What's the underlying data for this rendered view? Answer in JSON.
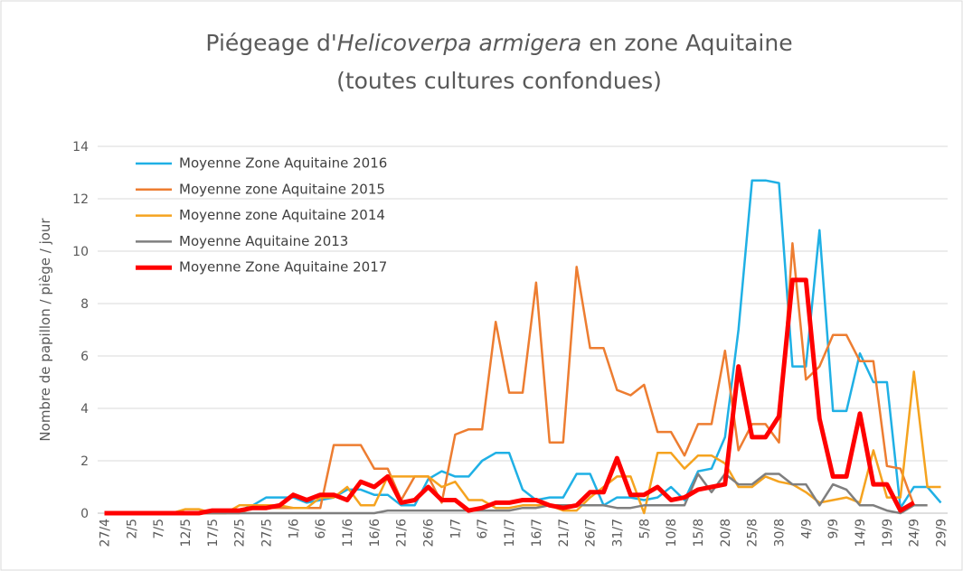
{
  "chart_data": {
    "type": "line",
    "title": [
      "Piégeage d'",
      "Helicoverpa armigera",
      " en zone Aquitaine",
      "(toutes cultures confondues)"
    ],
    "y_label": "Nombre de papillon / piège / jour",
    "categories": [
      "27/4",
      null,
      "2/5",
      null,
      "7/5",
      null,
      "12/5",
      null,
      "17/5",
      null,
      "22/5",
      null,
      "27/5",
      null,
      "1/6",
      null,
      "6/6",
      null,
      "11/6",
      null,
      "16/6",
      null,
      "21/6",
      null,
      "26/6",
      null,
      "1/7",
      null,
      "6/7",
      null,
      "11/7",
      null,
      "16/7",
      null,
      "21/7",
      null,
      "26/7",
      null,
      "31/7",
      null,
      "5/8",
      null,
      "10/8",
      null,
      "15/8",
      null,
      "20/8",
      null,
      "25/8",
      null,
      "30/8",
      null,
      "4/9",
      null,
      "9/9",
      null,
      "14/9",
      null,
      "19/9",
      null,
      "24/9",
      null,
      "29/9"
    ],
    "ylim": [
      0,
      14
    ],
    "yticks": [
      0,
      2,
      4,
      6,
      8,
      10,
      12,
      14
    ],
    "grid": true,
    "legend": "upper-left",
    "series": [
      {
        "name": "Moyenne Zone Aquitaine 2016",
        "color": "#1fb0e5",
        "width": 2.5,
        "values": [
          0,
          0,
          0,
          0,
          0,
          0,
          0,
          0,
          0,
          0,
          0.1,
          0.3,
          0.6,
          0.6,
          0.6,
          0.4,
          0.5,
          0.6,
          0.9,
          0.9,
          0.7,
          0.7,
          0.3,
          0.3,
          1.3,
          1.6,
          1.4,
          1.4,
          2.0,
          2.3,
          2.3,
          0.9,
          0.5,
          0.6,
          0.6,
          1.5,
          1.5,
          0.3,
          0.6,
          0.6,
          0.5,
          0.6,
          1.0,
          0.5,
          1.6,
          1.7,
          2.9,
          7.0,
          12.7,
          12.7,
          12.6,
          5.6,
          5.6,
          10.8,
          3.9,
          3.9,
          6.1,
          5.0,
          5.0,
          0.2,
          1.0,
          1.0,
          0.4
        ]
      },
      {
        "name": "Moyenne zone Aquitaine 2015",
        "color": "#ed7d31",
        "width": 2.5,
        "values": [
          0,
          0,
          0,
          0,
          0,
          0,
          0,
          0,
          0,
          0,
          0,
          0.2,
          0.2,
          0.2,
          0.2,
          0.2,
          0.2,
          2.6,
          2.6,
          2.6,
          1.7,
          1.7,
          0.5,
          1.4,
          1.4,
          0.4,
          3.0,
          3.2,
          3.2,
          7.3,
          4.6,
          4.6,
          8.8,
          2.7,
          2.7,
          9.4,
          6.3,
          6.3,
          4.7,
          4.5,
          4.9,
          3.1,
          3.1,
          2.2,
          3.4,
          3.4,
          6.2,
          2.4,
          3.4,
          3.4,
          2.7,
          10.3,
          5.1,
          5.6,
          6.8,
          6.8,
          5.8,
          5.8,
          1.8,
          1.7,
          0.3,
          0.3,
          null
        ]
      },
      {
        "name": "Moyenne zone Aquitaine 2014",
        "color": "#f5a31f",
        "width": 2.5,
        "values": [
          0,
          0,
          0,
          0,
          0,
          0,
          0.15,
          0.15,
          0,
          0,
          0.3,
          0.3,
          0.3,
          0.3,
          0.2,
          0.2,
          0.6,
          0.6,
          1.0,
          0.3,
          0.3,
          1.4,
          1.4,
          1.4,
          1.4,
          1.0,
          1.2,
          0.5,
          0.5,
          0.2,
          0.2,
          0.3,
          0.3,
          0.3,
          0.1,
          0.1,
          0.6,
          1.0,
          1.4,
          1.4,
          0.0,
          2.3,
          2.3,
          1.7,
          2.2,
          2.2,
          1.9,
          1.0,
          1.0,
          1.4,
          1.2,
          1.1,
          0.8,
          0.4,
          0.5,
          0.6,
          0.4,
          2.4,
          0.6,
          0.6,
          5.4,
          1.0,
          1.0
        ]
      },
      {
        "name": "Moyenne Aquitaine 2013",
        "color": "#7f7f7f",
        "width": 2.5,
        "values": [
          0,
          0,
          0,
          0,
          0,
          0,
          0,
          0,
          0,
          0,
          0,
          0,
          0,
          0,
          0,
          0,
          0,
          0,
          0,
          0,
          0,
          0.1,
          0.1,
          0.1,
          0.1,
          0.1,
          0.1,
          0.1,
          0.1,
          0.1,
          0.1,
          0.2,
          0.2,
          0.3,
          0.3,
          0.3,
          0.3,
          0.3,
          0.2,
          0.2,
          0.3,
          0.3,
          0.3,
          0.3,
          1.5,
          0.8,
          1.5,
          1.1,
          1.1,
          1.5,
          1.5,
          1.1,
          1.1,
          0.3,
          1.1,
          0.9,
          0.3,
          0.3,
          0.1,
          0.0,
          0.3,
          0.3,
          null
        ]
      },
      {
        "name": "Moyenne Zone Aquitaine 2017",
        "color": "#ff0000",
        "width": 5,
        "values": [
          0,
          0,
          0,
          0,
          0,
          0,
          0,
          0,
          0.1,
          0.1,
          0.1,
          0.2,
          0.2,
          0.3,
          0.7,
          0.5,
          0.7,
          0.7,
          0.5,
          1.2,
          1.0,
          1.4,
          0.4,
          0.5,
          1.0,
          0.5,
          0.5,
          0.1,
          0.2,
          0.4,
          0.4,
          0.5,
          0.5,
          0.3,
          0.2,
          0.3,
          0.8,
          0.8,
          2.1,
          0.7,
          0.7,
          1.0,
          0.5,
          0.6,
          0.9,
          1.0,
          1.1,
          5.6,
          2.9,
          2.9,
          3.7,
          8.9,
          8.9,
          3.6,
          1.4,
          1.4,
          3.8,
          1.1,
          1.1,
          0.1,
          0.4,
          null,
          null
        ]
      }
    ]
  }
}
